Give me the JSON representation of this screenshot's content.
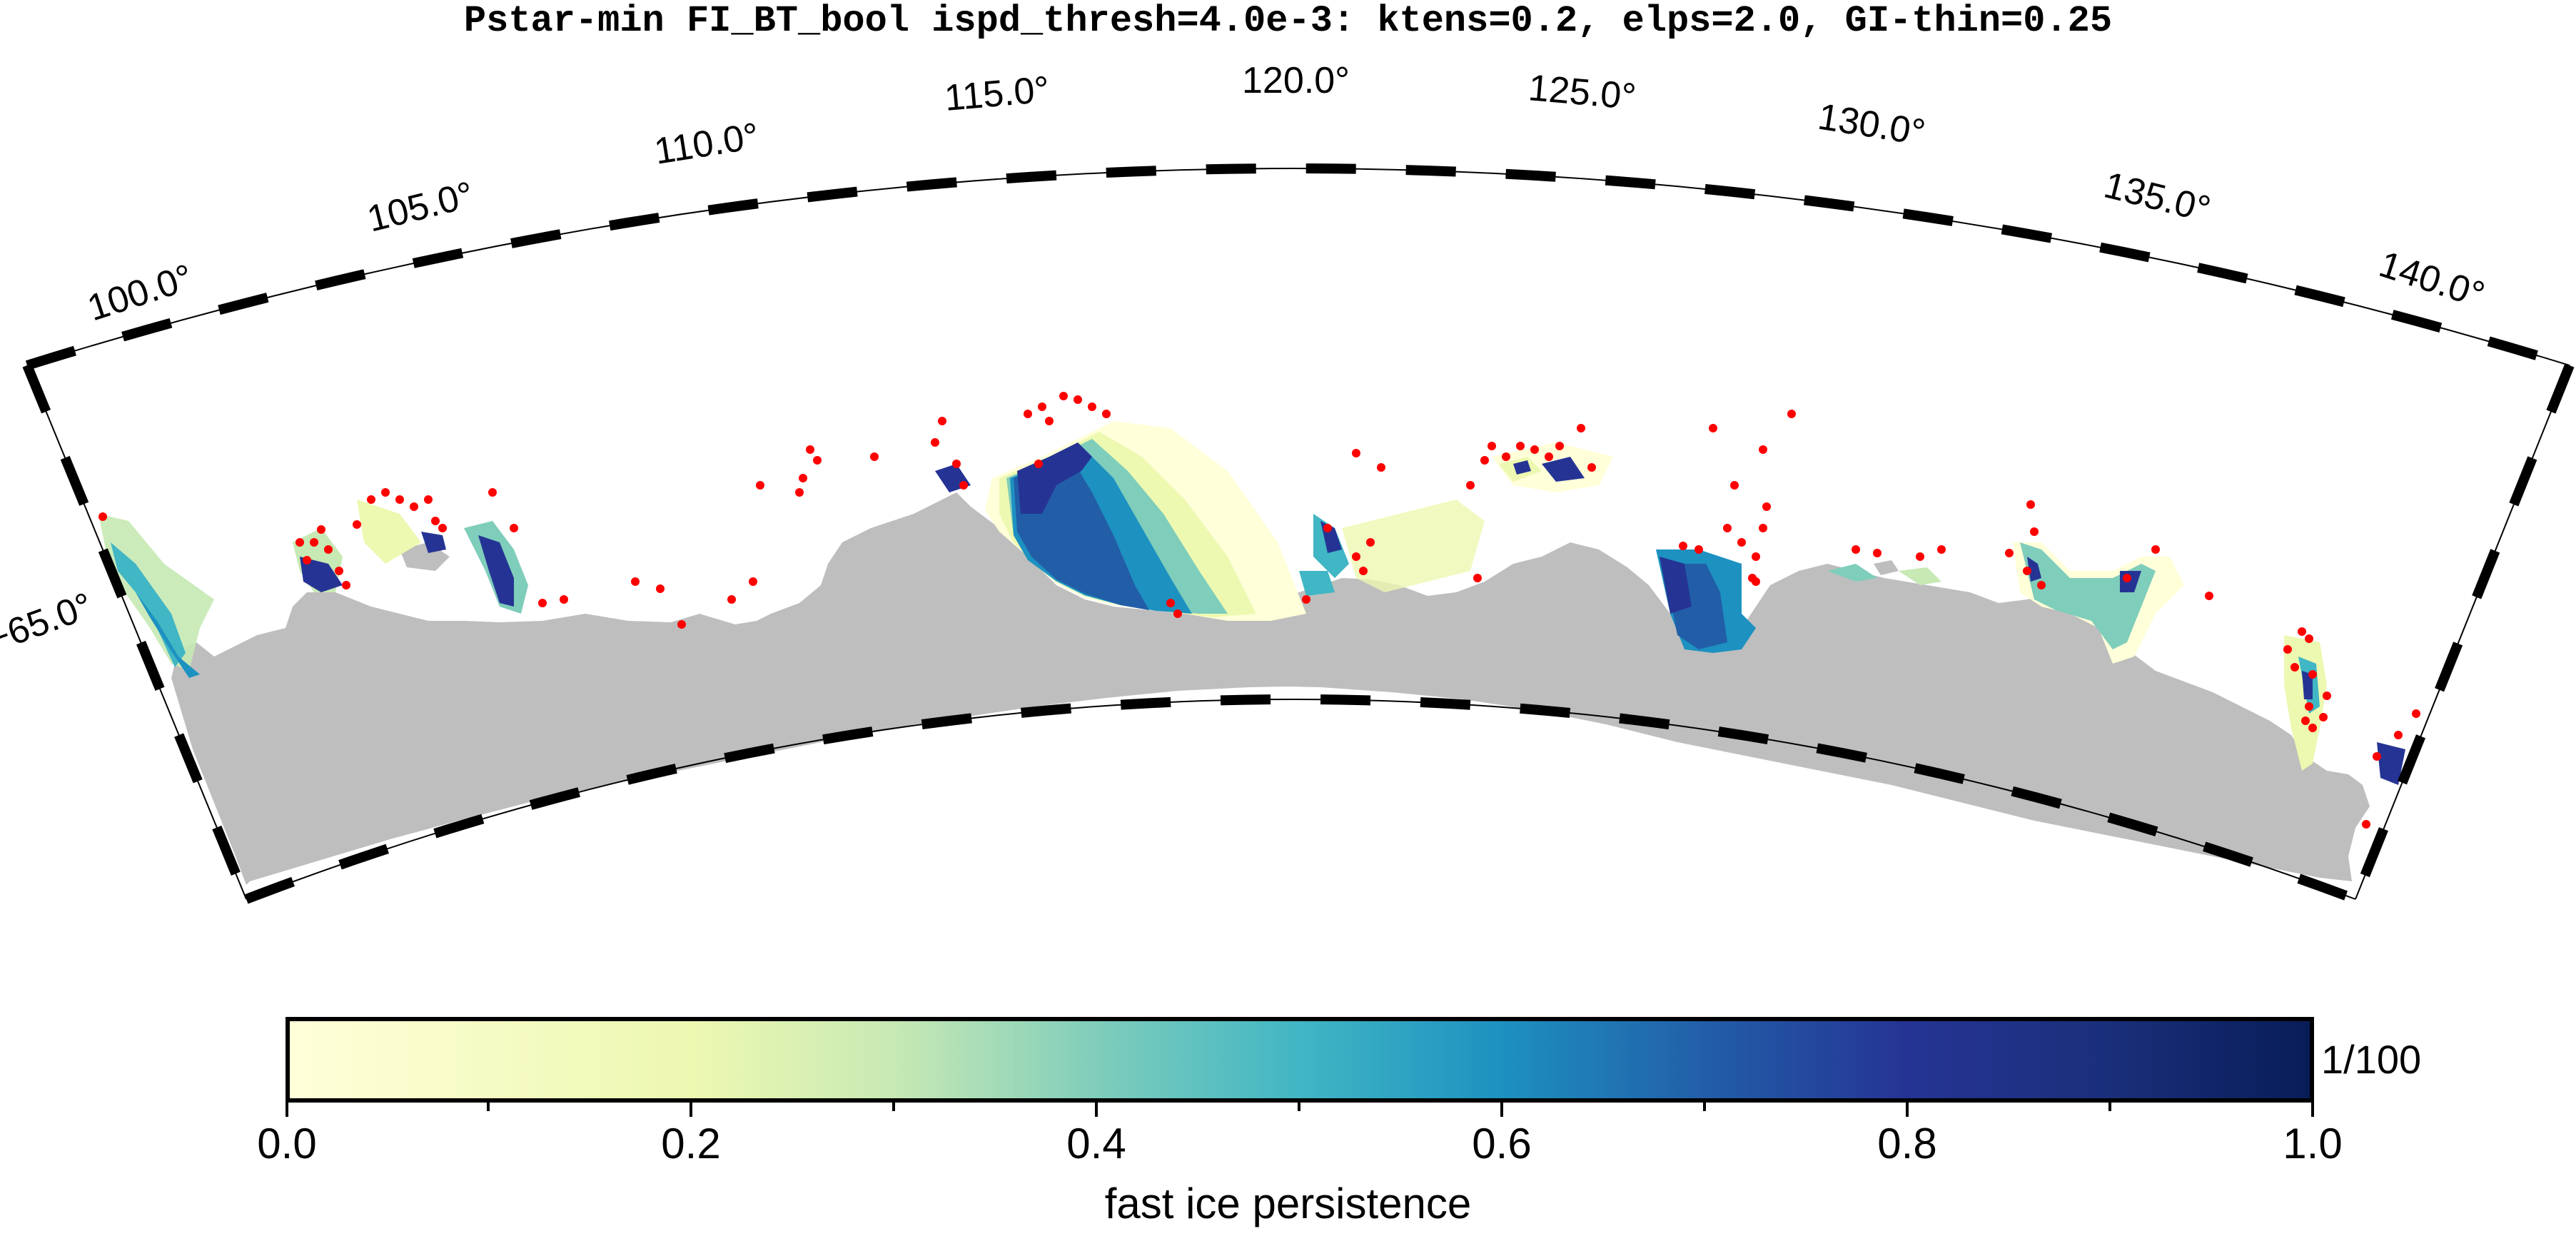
{
  "title": "Pstar-min FI_BT_bool ispd_thresh=4.0e-3: ktens=0.2, elps=2.0, GI-thin=0.25",
  "map": {
    "projection": "polar stereographic sector",
    "lon_labels": [
      "100.0°",
      "105.0°",
      "110.0°",
      "115.0°",
      "120.0°",
      "125.0°",
      "130.0°",
      "135.0°",
      "140.0°"
    ],
    "lat_label": "−65.0°",
    "colors": {
      "land": "#bebebe",
      "ocean": "#ffffff",
      "grounded_icebergs": "#ff0000"
    },
    "layers": [
      "land",
      "fast ice persistence grid",
      "grounded iceberg points"
    ]
  },
  "colorbar": {
    "label": "fast ice persistence",
    "unit": "1/100",
    "ticks": [
      "0.0",
      "0.2",
      "0.4",
      "0.6",
      "0.8",
      "1.0"
    ],
    "range": [
      0.0,
      1.0
    ],
    "colors": [
      "#ffffd9",
      "#edf8b1",
      "#c7e9b4",
      "#7fcdbb",
      "#41b6c4",
      "#1d91c0",
      "#225ea8",
      "#253494",
      "#081d58"
    ]
  }
}
